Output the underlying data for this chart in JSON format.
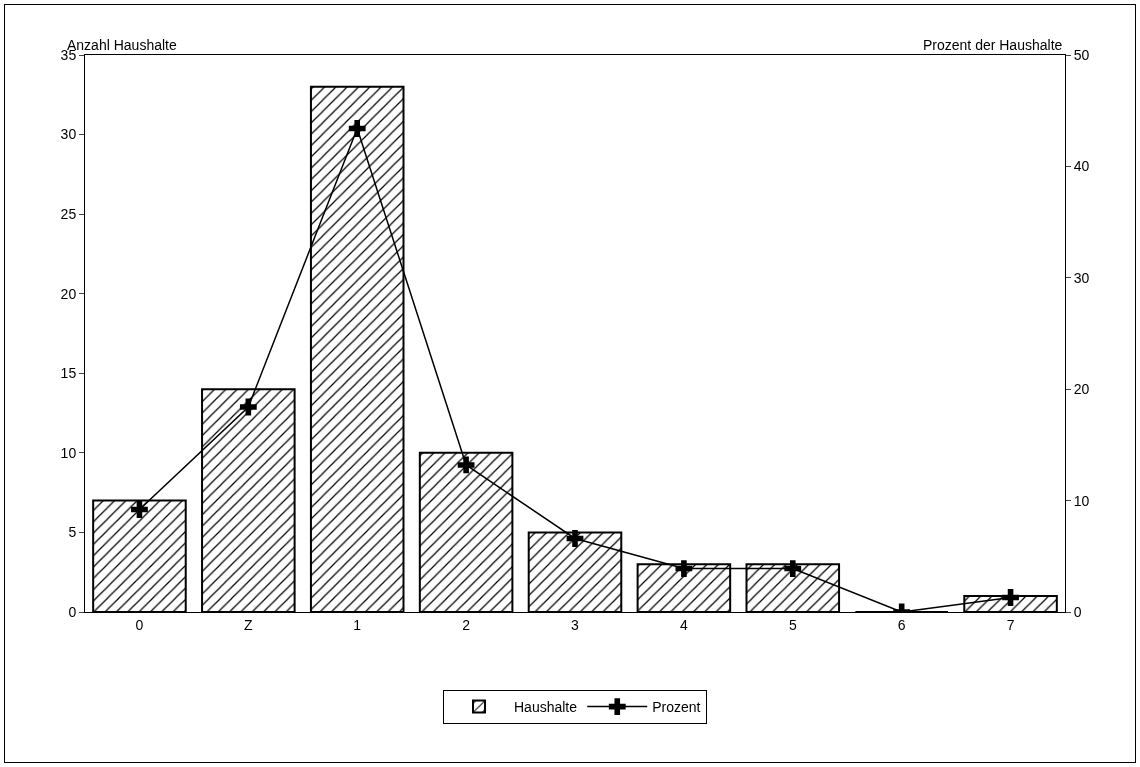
{
  "chart_data": {
    "type": "bar",
    "ylabel": "Anzahl Haushalte",
    "y2label": "Prozent der Haushalte",
    "categories": [
      "0",
      "Z",
      "1",
      "2",
      "3",
      "4",
      "5",
      "6",
      "7"
    ],
    "series": [
      {
        "name": "Haushalte",
        "color": "#000000",
        "values": [
          7,
          14,
          33,
          10,
          5,
          3,
          3,
          0,
          1
        ]
      },
      {
        "name": "Prozent",
        "type": "line",
        "axis": "y2",
        "color": "#000000",
        "marker": "cross",
        "values": [
          9.2,
          18.4,
          43.4,
          13.2,
          6.6,
          3.9,
          3.9,
          0,
          1.3
        ]
      }
    ],
    "ylim": [
      0,
      35
    ],
    "yticks": [
      0,
      5,
      10,
      15,
      20,
      25,
      30,
      35
    ],
    "y2lim": [
      0,
      50
    ],
    "y2ticks": [
      0,
      10,
      20,
      30,
      40,
      50
    ],
    "grid": false,
    "legend": "bottom"
  }
}
